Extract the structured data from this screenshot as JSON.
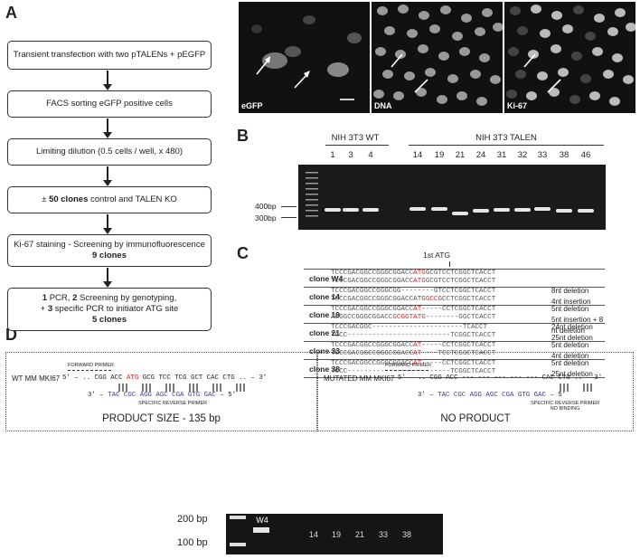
{
  "panel_labels": {
    "a": "A",
    "b": "B",
    "c": "C",
    "d": "D"
  },
  "flow": {
    "box1": "Transient transfection with two pTALENs + pEGFP",
    "box2": "FACS sorting eGFP positive cells",
    "box3": "Limiting dilution (0.5 cells / well, x 480)",
    "box4_pre": "± ",
    "box4_bold": "50 clones",
    "box4_post": " control and TALEN KO",
    "box5_l1": "Ki-67 staining - Screening by immunofluorescence",
    "box5_l2": "9 clones",
    "box6_n1": "1",
    "box6_t1": " PCR, ",
    "box6_n2": "2",
    "box6_t2": " Screening by genotyping,",
    "box6_l2a": "+ ",
    "box6_n3": "3",
    "box6_l2b": " specific PCR  to initiator ATG site",
    "box6_l3": "5 clones"
  },
  "micro": {
    "labels": [
      "eGFP",
      "DNA",
      "Ki-67"
    ]
  },
  "gel_b": {
    "group1": "NIH 3T3 WT",
    "group2": "NIH 3T3 TALEN",
    "lanes": [
      "1",
      "3",
      "4",
      "14",
      "19",
      "21",
      "24",
      "31",
      "32",
      "33",
      "38",
      "46"
    ],
    "marker_400": "400bp",
    "marker_300": "300bp"
  },
  "panel_c": {
    "header": "1st ATG",
    "clones": [
      {
        "name": "clone W4",
        "seq": [
          {
            "a": "TCCCGACGGCCGGGCGGACC",
            "r": "ATG",
            "b": "GCGTCCTCGGCTCACCT"
          },
          {
            "a": "TCCCGACGGCCGGGCGGACC",
            "r": "ATG",
            "b": "GCGTCCTCGGCTCACCT"
          }
        ],
        "desc": [
          "",
          ""
        ]
      },
      {
        "name": "clone 14",
        "seq": [
          {
            "a": "TCCCGACGGCCGGGCGG--------GTCCTCGGCTCACCT",
            "r": "",
            "b": ""
          },
          {
            "a": "TCCCGACGGCCGGGCGGACCATG",
            "r": "GCCG",
            "b": "CCTCGGCTCACCT"
          }
        ],
        "desc": [
          "8nt deletion",
          "4nt insertion"
        ]
      },
      {
        "name": "clone 19",
        "seq": [
          {
            "a": "TCCCGACGGCCGGGCGGACC",
            "r": "AT",
            "b": "-----CCTCGGCTCACCT"
          },
          {
            "a": "ACGGCCGGGCGGACC",
            "r": "GCGGTATG",
            "b": "--------GGCTCACCT"
          }
        ],
        "desc": [
          "5nt deletion",
          "5nt insertion + 8 nt deletion"
        ]
      },
      {
        "name": "clone 21",
        "seq": [
          {
            "a": "TCCCGACGGC----------------------TCACCT",
            "r": "",
            "b": ""
          },
          {
            "a": "TCCC-------------------------TCGGCTCACCT",
            "r": "",
            "b": ""
          }
        ],
        "desc": [
          "24nt deletion",
          "25nt deletion"
        ]
      },
      {
        "name": "clone 33",
        "seq": [
          {
            "a": "TCCCGACGGCCGGGCGGACC",
            "r": "AT",
            "b": "-----CCTCGGCTCACCT"
          },
          {
            "a": "TCCCGACGGCCGGGCGGACC",
            "r": "AT",
            "b": "----TCCTCGGCTCACCT"
          }
        ],
        "desc": [
          "5nt deletion",
          "4nt deletion"
        ]
      },
      {
        "name": "clone 38",
        "seq": [
          {
            "a": "TCCCGACGGCCGGGCGGACC",
            "r": "AT",
            "b": "-----CCTCGGCTCACCT"
          },
          {
            "a": "TCCC-------------------------TCGGCTCACCT",
            "r": "",
            "b": ""
          }
        ],
        "desc": [
          "5nt deletion",
          "25nt deletion"
        ]
      }
    ]
  },
  "panel_d": {
    "left": {
      "fwd": "FORWARD PRIMER",
      "label": "WT MM MKI67",
      "top_pre": "5′ – .. CGG ACC ",
      "top_atg": "ATG",
      "top_post": " GCG TCC TCG GCT CAC CTG .. – 3′",
      "bot_pre": "3′ – ",
      "bot_seq": "TAC CGC AGG AGC CGA GTG GAC",
      "bot_post": " – 5′",
      "rev": "SPECIFIC REVERSE PRIMER",
      "result": "PRODUCT SIZE - 135 bp"
    },
    "right": {
      "fwd": "FORWARD PRIMER",
      "label": "MUTATED MM MKI67",
      "top": "5′ – .. CGG ACC --- --- --- --- --- CAC CTG .. – 3′",
      "bot_pre": "3′ – ",
      "bot_seq": "TAC CGC AGG AGC CGA GTG GAC",
      "bot_post": " – 5′",
      "rev": "SPECIFIC REVERSE PRIMER",
      "rev2": "NO BINDING",
      "result": "NO PRODUCT"
    },
    "gel": {
      "lanes": [
        "W4",
        "14",
        "19",
        "21",
        "33",
        "38"
      ],
      "m200": "200 bp",
      "m100": "100 bp"
    }
  }
}
